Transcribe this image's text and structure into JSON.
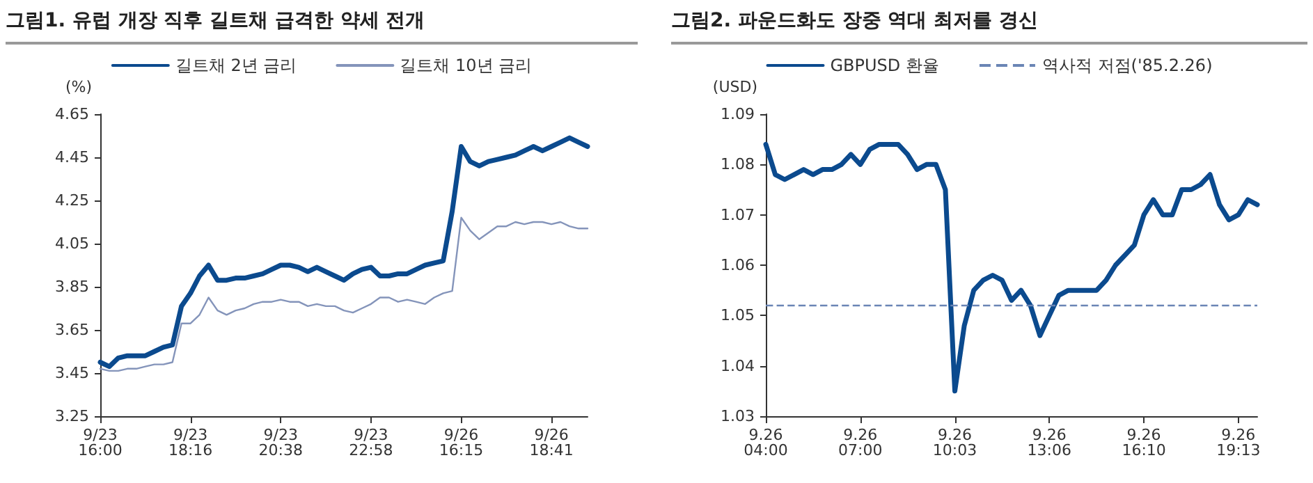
{
  "chart_data": [
    {
      "type": "line",
      "title": "그림1. 유럽 개장 직후 길트채 급격한 약세 전개",
      "ylabel": "(%)",
      "categories": [
        "9/23 16:00",
        null,
        null,
        null,
        null,
        null,
        null,
        null,
        null,
        null,
        "9/23 18:16",
        null,
        null,
        null,
        null,
        null,
        null,
        null,
        null,
        null,
        "9/23 20:38",
        null,
        null,
        null,
        null,
        null,
        null,
        null,
        null,
        null,
        "9/23 22:58",
        null,
        null,
        null,
        null,
        null,
        null,
        null,
        null,
        null,
        "9/26 16:15",
        null,
        null,
        null,
        null,
        null,
        null,
        null,
        null,
        null,
        "9/26 18:41",
        null,
        null,
        null,
        null
      ],
      "series": [
        {
          "name": "길트채 2년 금리",
          "color": "#0b4a8e",
          "values": [
            3.5,
            3.48,
            3.52,
            3.53,
            3.53,
            3.53,
            3.55,
            3.57,
            3.58,
            3.76,
            3.82,
            3.9,
            3.95,
            3.88,
            3.88,
            3.89,
            3.89,
            3.9,
            3.91,
            3.93,
            3.95,
            3.95,
            3.94,
            3.92,
            3.94,
            3.92,
            3.9,
            3.88,
            3.91,
            3.93,
            3.94,
            3.9,
            3.9,
            3.91,
            3.91,
            3.93,
            3.95,
            3.96,
            3.97,
            4.2,
            4.5,
            4.43,
            4.41,
            4.43,
            4.44,
            4.45,
            4.46,
            4.48,
            4.5,
            4.48,
            4.5,
            4.52,
            4.54,
            4.52,
            4.5
          ]
        },
        {
          "name": "길트채 10년 금리",
          "color": "#8494ba",
          "values": [
            3.47,
            3.46,
            3.46,
            3.47,
            3.47,
            3.48,
            3.49,
            3.49,
            3.5,
            3.68,
            3.68,
            3.72,
            3.8,
            3.74,
            3.72,
            3.74,
            3.75,
            3.77,
            3.78,
            3.78,
            3.79,
            3.78,
            3.78,
            3.76,
            3.77,
            3.76,
            3.76,
            3.74,
            3.73,
            3.75,
            3.77,
            3.8,
            3.8,
            3.78,
            3.79,
            3.78,
            3.77,
            3.8,
            3.82,
            3.83,
            4.17,
            4.11,
            4.07,
            4.1,
            4.13,
            4.13,
            4.15,
            4.14,
            4.15,
            4.15,
            4.14,
            4.15,
            4.13,
            4.12,
            4.12
          ]
        }
      ],
      "ylim": [
        3.25,
        4.65
      ],
      "yticks": [
        3.25,
        3.45,
        3.65,
        3.85,
        4.05,
        4.25,
        4.45,
        4.65
      ],
      "grid": false,
      "legend": "top"
    },
    {
      "type": "line",
      "title": "그림2. 파운드화도 장중 역대 최저를 경신",
      "ylabel": "(USD)",
      "categories": [
        "9.26 04:00",
        null,
        null,
        null,
        null,
        null,
        null,
        null,
        null,
        null,
        "9.26 07:00",
        null,
        null,
        null,
        null,
        null,
        null,
        null,
        null,
        null,
        "9.26 10:03",
        null,
        null,
        null,
        null,
        null,
        null,
        null,
        null,
        null,
        "9.26 13:06",
        null,
        null,
        null,
        null,
        null,
        null,
        null,
        null,
        null,
        "9.26 16:10",
        null,
        null,
        null,
        null,
        null,
        null,
        null,
        null,
        null,
        "9.26 19:13",
        null,
        null
      ],
      "series": [
        {
          "name": "GBPUSD 환율",
          "color": "#0b4a8e",
          "values": [
            1.084,
            1.078,
            1.077,
            1.078,
            1.079,
            1.078,
            1.079,
            1.079,
            1.08,
            1.082,
            1.08,
            1.083,
            1.084,
            1.084,
            1.084,
            1.082,
            1.079,
            1.08,
            1.08,
            1.075,
            1.035,
            1.048,
            1.055,
            1.057,
            1.058,
            1.057,
            1.053,
            1.055,
            1.052,
            1.046,
            1.05,
            1.054,
            1.055,
            1.055,
            1.055,
            1.055,
            1.057,
            1.06,
            1.062,
            1.064,
            1.07,
            1.073,
            1.07,
            1.07,
            1.075,
            1.075,
            1.076,
            1.078,
            1.072,
            1.069,
            1.07,
            1.073,
            1.072
          ]
        }
      ],
      "ref_lines": [
        {
          "axis": "y",
          "value": 1.052,
          "label": "역사적 저점('85.2.26)",
          "color": "#6a85b5",
          "line_style": "dashed"
        }
      ],
      "ylim": [
        1.03,
        1.09
      ],
      "yticks": [
        1.03,
        1.04,
        1.05,
        1.06,
        1.07,
        1.08,
        1.09
      ],
      "grid": false,
      "legend": "top"
    }
  ]
}
